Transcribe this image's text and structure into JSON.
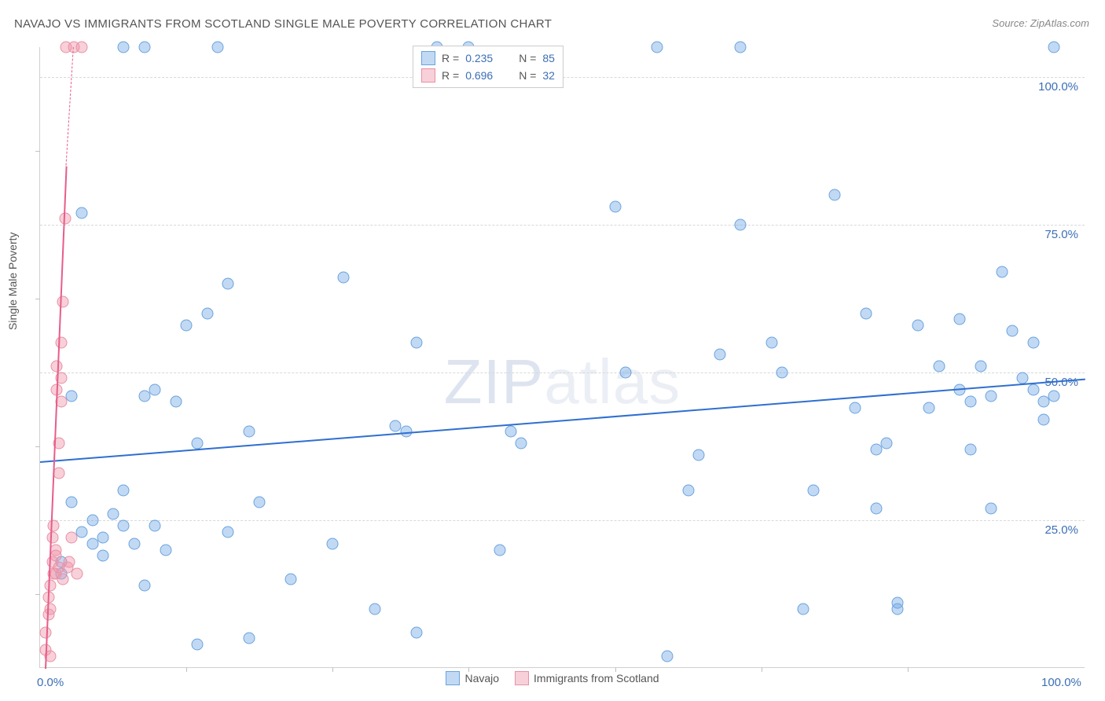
{
  "title": "NAVAJO VS IMMIGRANTS FROM SCOTLAND SINGLE MALE POVERTY CORRELATION CHART",
  "source_label": "Source:",
  "source_name": "ZipAtlas.com",
  "yaxis_label": "Single Male Poverty",
  "watermark_bold": "ZIP",
  "watermark_light": "atlas",
  "chart": {
    "type": "scatter",
    "xlim": [
      0,
      100
    ],
    "ylim": [
      0,
      105
    ],
    "xticks": [
      0,
      100
    ],
    "xtick_labels": [
      "0.0%",
      "100.0%"
    ],
    "xtick_marks": [
      14,
      28,
      41,
      55,
      69,
      83
    ],
    "yticks": [
      25,
      50,
      75,
      100
    ],
    "ytick_labels": [
      "25.0%",
      "50.0%",
      "75.0%",
      "100.0%"
    ],
    "ytick_marks": [
      12.5,
      37.5,
      62.5,
      87.5
    ],
    "grid_color": "#d8d8d8",
    "background_color": "#ffffff",
    "marker_size": 15,
    "series": [
      {
        "name": "Navajo",
        "color_fill": "rgba(120,170,230,0.45)",
        "color_stroke": "#6aa3de",
        "R": "0.235",
        "N": "85",
        "trend": {
          "x1": 0,
          "y1": 35,
          "x2": 100,
          "y2": 49,
          "color": "#2f6fd0",
          "width": 2
        },
        "points": [
          [
            2,
            16
          ],
          [
            2,
            18
          ],
          [
            3,
            46
          ],
          [
            3,
            28
          ],
          [
            4,
            23
          ],
          [
            4,
            77
          ],
          [
            5,
            21
          ],
          [
            5,
            25
          ],
          [
            6,
            22
          ],
          [
            6,
            19
          ],
          [
            7,
            26
          ],
          [
            8,
            30
          ],
          [
            8,
            24
          ],
          [
            8,
            105
          ],
          [
            9,
            21
          ],
          [
            10,
            14
          ],
          [
            10,
            46
          ],
          [
            10,
            105
          ],
          [
            11,
            47
          ],
          [
            11,
            24
          ],
          [
            12,
            20
          ],
          [
            13,
            45
          ],
          [
            14,
            58
          ],
          [
            15,
            4
          ],
          [
            15,
            38
          ],
          [
            16,
            60
          ],
          [
            17,
            105
          ],
          [
            18,
            23
          ],
          [
            18,
            65
          ],
          [
            20,
            40
          ],
          [
            20,
            5
          ],
          [
            21,
            28
          ],
          [
            24,
            15
          ],
          [
            28,
            21
          ],
          [
            29,
            66
          ],
          [
            32,
            10
          ],
          [
            34,
            41
          ],
          [
            35,
            40
          ],
          [
            36,
            55
          ],
          [
            36,
            6
          ],
          [
            38,
            105
          ],
          [
            41,
            105
          ],
          [
            44,
            20
          ],
          [
            45,
            40
          ],
          [
            46,
            38
          ],
          [
            55,
            78
          ],
          [
            56,
            50
          ],
          [
            59,
            105
          ],
          [
            60,
            2
          ],
          [
            62,
            30
          ],
          [
            63,
            36
          ],
          [
            65,
            53
          ],
          [
            67,
            75
          ],
          [
            67,
            105
          ],
          [
            70,
            55
          ],
          [
            71,
            50
          ],
          [
            73,
            10
          ],
          [
            74,
            30
          ],
          [
            76,
            80
          ],
          [
            78,
            44
          ],
          [
            79,
            60
          ],
          [
            80,
            27
          ],
          [
            80,
            37
          ],
          [
            81,
            38
          ],
          [
            82,
            10
          ],
          [
            82,
            11
          ],
          [
            84,
            58
          ],
          [
            85,
            44
          ],
          [
            86,
            51
          ],
          [
            88,
            47
          ],
          [
            88,
            59
          ],
          [
            89,
            37
          ],
          [
            89,
            45
          ],
          [
            90,
            51
          ],
          [
            91,
            46
          ],
          [
            91,
            27
          ],
          [
            92,
            67
          ],
          [
            93,
            57
          ],
          [
            94,
            49
          ],
          [
            95,
            47
          ],
          [
            95,
            55
          ],
          [
            96,
            42
          ],
          [
            96,
            45
          ],
          [
            97,
            46
          ],
          [
            97,
            105
          ]
        ]
      },
      {
        "name": "Immigrants from Scotland",
        "color_fill": "rgba(240,150,170,0.45)",
        "color_stroke": "#e890a5",
        "R": "0.696",
        "N": "32",
        "trend": {
          "x1": 0.5,
          "y1": 0,
          "x2": 2.5,
          "y2": 85,
          "color": "#e75d8a",
          "width": 2
        },
        "trend_dash": {
          "x1": 2.5,
          "y1": 85,
          "x2": 3.2,
          "y2": 105,
          "color": "#e75d8a",
          "width": 1
        },
        "points": [
          [
            0.5,
            3
          ],
          [
            0.5,
            6
          ],
          [
            0.8,
            9
          ],
          [
            0.8,
            12
          ],
          [
            1,
            2
          ],
          [
            1,
            14
          ],
          [
            1,
            10
          ],
          [
            1.2,
            18
          ],
          [
            1.2,
            22
          ],
          [
            1.3,
            16
          ],
          [
            1.3,
            24
          ],
          [
            1.5,
            20
          ],
          [
            1.5,
            19
          ],
          [
            1.5,
            16
          ],
          [
            1.6,
            47
          ],
          [
            1.6,
            51
          ],
          [
            1.8,
            33
          ],
          [
            1.8,
            38
          ],
          [
            1.8,
            17
          ],
          [
            2,
            55
          ],
          [
            2,
            45
          ],
          [
            2,
            49
          ],
          [
            2.2,
            62
          ],
          [
            2.2,
            15
          ],
          [
            2.4,
            76
          ],
          [
            2.5,
            105
          ],
          [
            2.6,
            17
          ],
          [
            2.8,
            18
          ],
          [
            3,
            22
          ],
          [
            3.2,
            105
          ],
          [
            3.5,
            16
          ],
          [
            4,
            105
          ]
        ]
      }
    ]
  },
  "bottom_legend": [
    {
      "label": "Navajo",
      "fill": "rgba(120,170,230,0.45)",
      "stroke": "#6aa3de"
    },
    {
      "label": "Immigrants from Scotland",
      "fill": "rgba(240,150,170,0.45)",
      "stroke": "#e890a5"
    }
  ]
}
